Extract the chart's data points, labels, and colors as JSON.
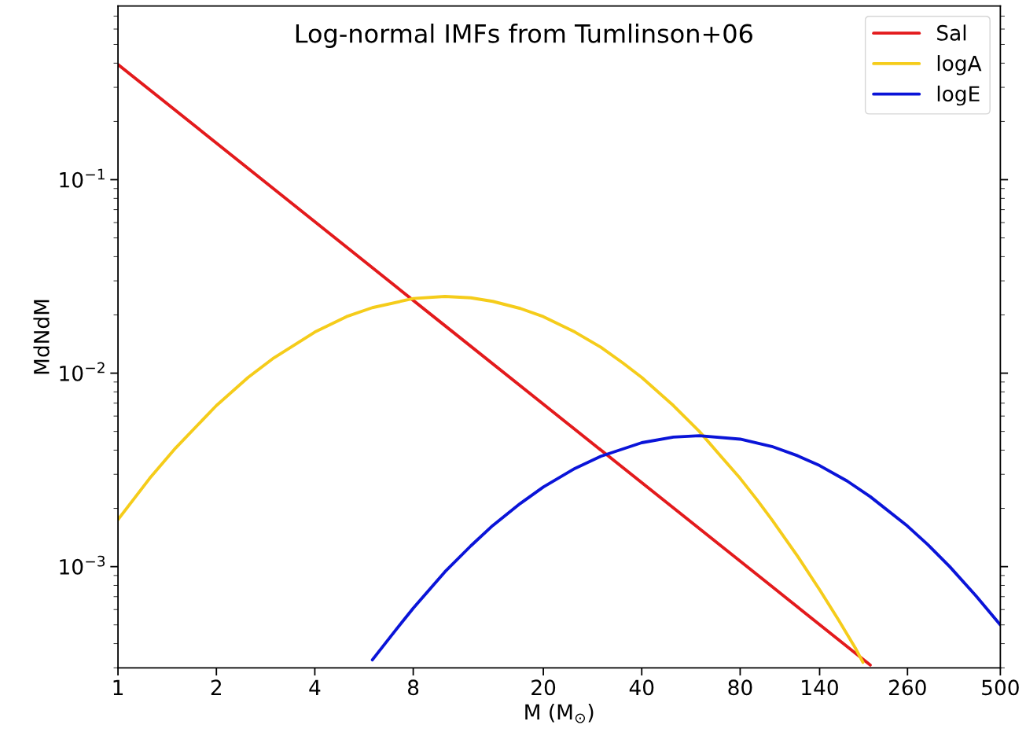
{
  "chart_data": {
    "type": "line",
    "log": "xy",
    "xlabel": "M (M$_{⊙}$)",
    "ylabel": "MdNdM",
    "annotations": [
      "Log-normal IMFs from Tumlinson+06"
    ],
    "xlim": [
      1,
      500
    ],
    "xticks": [
      1,
      2,
      4,
      8,
      20,
      40,
      80,
      140,
      260,
      500
    ],
    "ylim": [
      0.0003,
      0.79
    ],
    "yticks": [
      {
        "value": 0.001,
        "label": "10$^{−3}$"
      },
      {
        "value": 0.01,
        "label": "10$^{−2}$"
      },
      {
        "value": 0.1,
        "label": "10$^{−1}$"
      }
    ],
    "grid": false,
    "legend": "top right",
    "series": [
      {
        "name": "Sal",
        "color": "#e31a1c",
        "x": [
          1,
          10,
          100,
          200
        ],
        "values": [
          0.394,
          0.0176,
          0.00079,
          0.00031
        ]
      },
      {
        "name": "logA",
        "color": "#f5cc1a",
        "x": [
          1,
          1.25,
          1.5,
          2,
          2.5,
          3,
          4,
          5,
          6,
          8,
          10,
          12,
          14,
          17,
          20,
          25,
          30,
          35,
          40,
          50,
          60,
          70,
          80,
          90,
          100,
          120,
          140,
          160,
          180,
          190
        ],
        "values": [
          0.00175,
          0.00286,
          0.0041,
          0.0068,
          0.0095,
          0.012,
          0.0163,
          0.0196,
          0.0218,
          0.0243,
          0.0249,
          0.0245,
          0.0235,
          0.0216,
          0.0196,
          0.0163,
          0.0136,
          0.0113,
          0.0095,
          0.0068,
          0.005,
          0.0037,
          0.00286,
          0.00222,
          0.00175,
          0.00113,
          0.00076,
          0.00053,
          0.00038,
          0.00032
        ]
      },
      {
        "name": "logE",
        "color": "#0a14d8",
        "x": [
          6,
          7,
          8,
          10,
          12,
          14,
          17,
          20,
          25,
          30,
          40,
          50,
          60,
          80,
          100,
          120,
          140,
          170,
          200,
          260,
          300,
          350,
          420,
          500
        ],
        "values": [
          0.00033,
          0.00046,
          0.00061,
          0.00094,
          0.00128,
          0.00163,
          0.00212,
          0.00258,
          0.00322,
          0.00372,
          0.00437,
          0.00467,
          0.00475,
          0.00456,
          0.00418,
          0.00374,
          0.00333,
          0.00277,
          0.0023,
          0.00162,
          0.0013,
          0.001,
          0.00071,
          0.0005
        ]
      }
    ]
  }
}
